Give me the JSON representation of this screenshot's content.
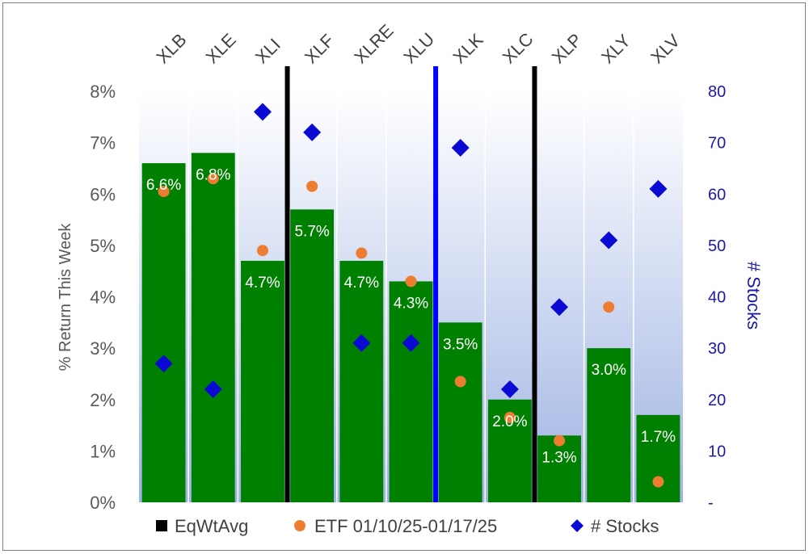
{
  "chart_data": {
    "type": "bar",
    "categories": [
      "XLB",
      "XLE",
      "XLI",
      "XLF",
      "XLRE",
      "XLU",
      "XLK",
      "XLC",
      "XLP",
      "XLY",
      "XLV"
    ],
    "series": [
      {
        "name": "EqWtAvg",
        "type": "bar",
        "axis": "left",
        "color": "#008000",
        "values": [
          6.6,
          6.8,
          4.7,
          5.7,
          4.7,
          4.3,
          3.5,
          2.0,
          1.3,
          3.0,
          1.7
        ],
        "labels": [
          "6.6%",
          "6.8%",
          "4.7%",
          "5.7%",
          "4.7%",
          "4.3%",
          "3.5%",
          "2.0%",
          "1.3%",
          "3.0%",
          "1.7%"
        ]
      },
      {
        "name": "ETF 01/10/25-01/17/25",
        "type": "scatter",
        "marker": "circle",
        "axis": "left",
        "color": "#ed7d31",
        "values": [
          6.05,
          6.3,
          4.9,
          6.15,
          4.85,
          4.3,
          2.35,
          1.65,
          1.2,
          3.8,
          0.4
        ]
      },
      {
        "name": "# Stocks",
        "type": "scatter",
        "marker": "diamond",
        "axis": "right",
        "color": "#0a0ad2",
        "values": [
          27,
          22,
          76,
          72,
          31,
          31,
          69,
          22,
          38,
          51,
          61
        ]
      }
    ],
    "y_left": {
      "label": "% Return This Week",
      "ylim": [
        0,
        8
      ],
      "ticks": [
        "0%",
        "1%",
        "2%",
        "3%",
        "4%",
        "5%",
        "6%",
        "7%",
        "8%"
      ]
    },
    "y_right": {
      "label": "# Stocks",
      "ylim": [
        0,
        80
      ],
      "ticks": [
        "-",
        "10",
        "20",
        "30",
        "40",
        "50",
        "60",
        "70",
        "80"
      ]
    },
    "separators": [
      {
        "between": [
          "XLI",
          "XLF"
        ],
        "color": "#000000"
      },
      {
        "between": [
          "XLU",
          "XLK"
        ],
        "color": "#0000ff"
      },
      {
        "between": [
          "XLC",
          "XLP"
        ],
        "color": "#000000"
      }
    ],
    "legend": {
      "position": "bottom",
      "items": [
        {
          "label": "EqWtAvg",
          "marker": "square",
          "color": "#000000"
        },
        {
          "label": "ETF 01/10/25-01/17/25",
          "marker": "circle",
          "color": "#ed7d31"
        },
        {
          "label": "# Stocks",
          "marker": "diamond",
          "color": "#0a0ad2"
        }
      ]
    },
    "plot_background": "gradient-white-to-lightblue",
    "grid": "vertical-category-lines"
  }
}
